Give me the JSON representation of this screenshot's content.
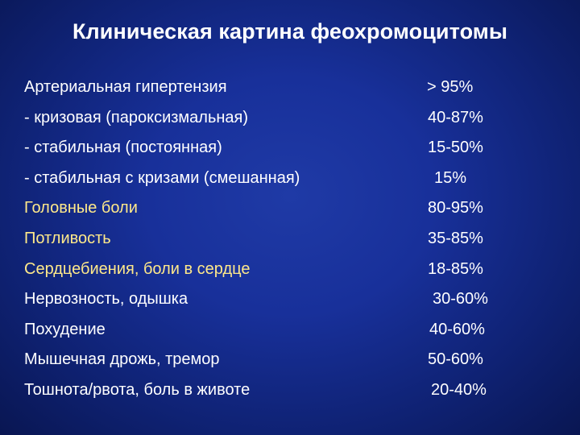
{
  "slide": {
    "title": "Клиническая картина феохромоцитомы",
    "rows": [
      {
        "label": "Артериальная гипертензия",
        "value": "> 95%"
      },
      {
        "label": "- кризовая (пароксизмальная)",
        "value": "40-87%"
      },
      {
        "label": "- стабильная (постоянная)",
        "value": "15-50%"
      },
      {
        "label": "- стабильная с кризами (смешанная)",
        "value": "15%"
      },
      {
        "label": "Головные боли",
        "value": "80-95%"
      },
      {
        "label": "Потливость",
        "value": "35-85%"
      },
      {
        "label": "Сердцебиения, боли в сердце",
        "value": "18-85%"
      },
      {
        "label": "Нервозность, одышка",
        "value": "30-60%"
      },
      {
        "label": "Похудение",
        "value": "40-60%"
      },
      {
        "label": "Мышечная дрожь, тремор",
        "value": "50-60%"
      },
      {
        "label": "Тошнота/рвота, боль в животе",
        "value": "20-40%"
      }
    ]
  },
  "colors": {
    "background": "#1a33a0",
    "title_text": "#ffffff",
    "label_white": "#ffffff",
    "label_yellow": "#ffe98a",
    "value_text": "#ffffff"
  }
}
